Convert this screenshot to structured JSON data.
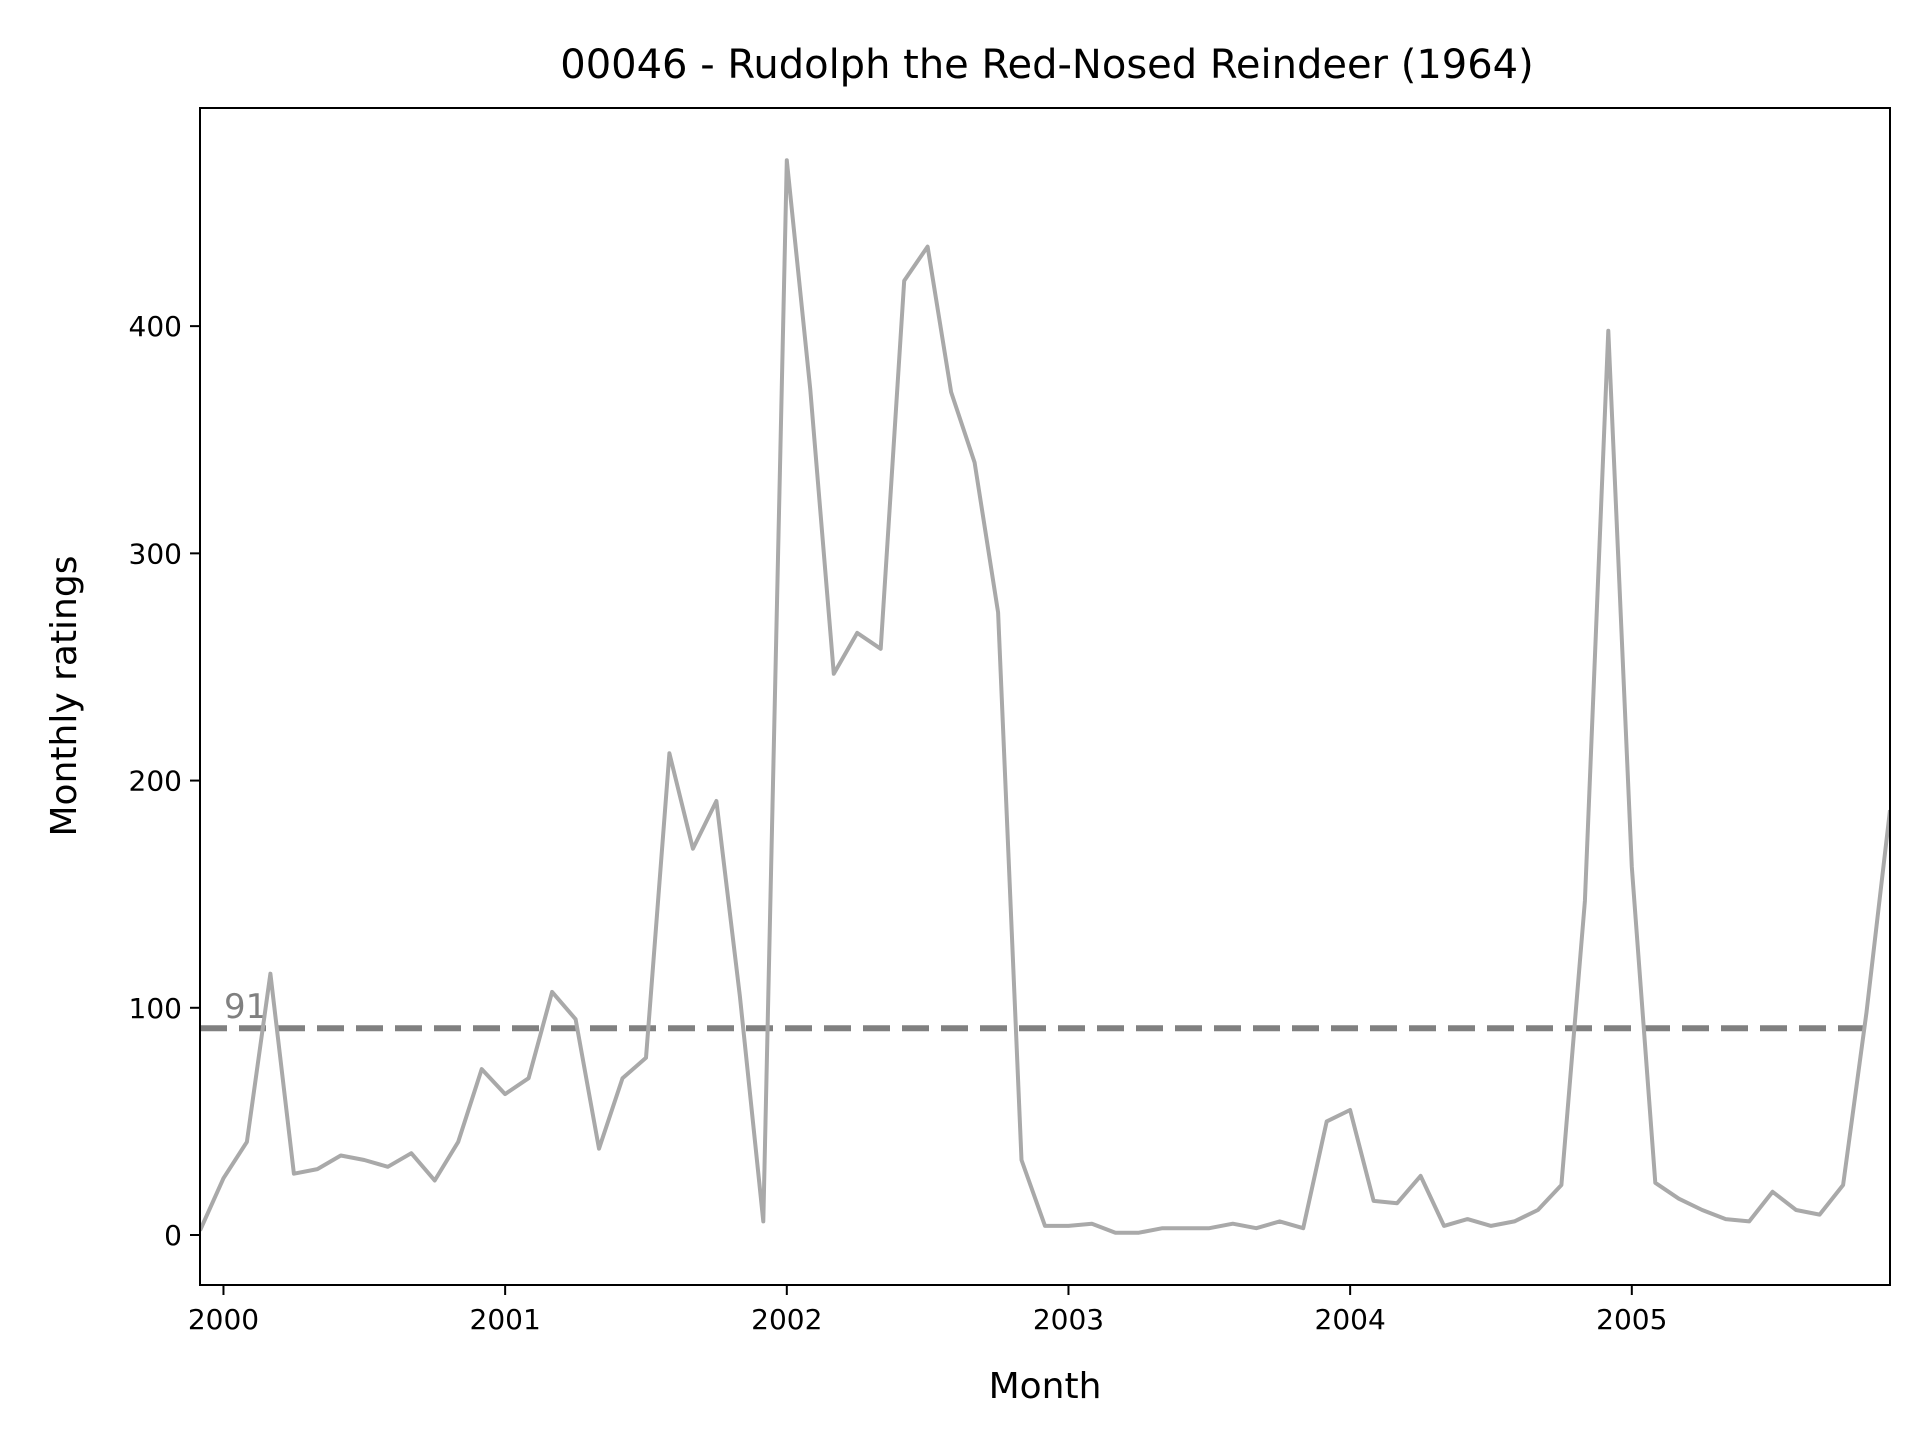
{
  "chart_data": {
    "type": "line",
    "title": "00046 - Rudolph the Red-Nosed Reindeer (1964)",
    "xlabel": "Month",
    "ylabel": "Monthly ratings",
    "xlim": [
      "1999-12",
      "2005-12"
    ],
    "ylim": [
      -22,
      496
    ],
    "x_ticks": [
      "2000",
      "2001",
      "2002",
      "2003",
      "2004",
      "2005"
    ],
    "y_ticks": [
      0,
      100,
      200,
      300,
      400
    ],
    "grid": false,
    "line_color": "#a9a9a9",
    "reference_line": {
      "value": 91,
      "label": "91",
      "style": "dashed",
      "color": "#808080"
    },
    "series": [
      {
        "x": [
          "1999-12",
          "2000-01",
          "2000-02",
          "2000-03",
          "2000-04",
          "2000-05",
          "2000-06",
          "2000-07",
          "2000-08",
          "2000-09",
          "2000-10",
          "2000-11",
          "2000-12",
          "2001-01",
          "2001-02",
          "2001-03",
          "2001-04",
          "2001-05",
          "2001-06",
          "2001-07",
          "2001-08",
          "2001-09",
          "2001-10",
          "2001-11",
          "2001-12",
          "2002-01",
          "2002-02",
          "2002-03",
          "2002-04",
          "2002-05",
          "2002-06",
          "2002-07",
          "2002-08",
          "2002-09",
          "2002-10",
          "2002-11",
          "2002-12",
          "2003-01",
          "2003-02",
          "2003-03",
          "2003-04",
          "2003-05",
          "2003-06",
          "2003-07",
          "2003-08",
          "2003-09",
          "2003-10",
          "2003-11",
          "2003-12",
          "2004-01",
          "2004-02",
          "2004-03",
          "2004-04",
          "2004-05",
          "2004-06",
          "2004-07",
          "2004-08",
          "2004-09",
          "2004-10",
          "2004-11",
          "2004-12",
          "2005-01",
          "2005-02",
          "2005-03",
          "2005-04",
          "2005-05",
          "2005-06",
          "2005-07",
          "2005-08",
          "2005-09",
          "2005-10",
          "2005-11",
          "2005-12"
        ],
        "values": [
          2,
          25,
          41,
          115,
          27,
          29,
          35,
          33,
          30,
          36,
          24,
          41,
          73,
          62,
          69,
          107,
          95,
          38,
          69,
          78,
          212,
          170,
          191,
          105,
          6,
          473,
          372,
          247,
          265,
          258,
          420,
          435,
          371,
          340,
          274,
          33,
          4,
          4,
          5,
          1,
          1,
          3,
          3,
          3,
          5,
          3,
          6,
          3,
          50,
          55,
          15,
          14,
          26,
          4,
          7,
          4,
          6,
          11,
          22,
          147,
          398,
          162,
          23,
          16,
          11,
          7,
          6,
          19,
          11,
          9,
          22,
          98,
          187
        ]
      }
    ]
  }
}
